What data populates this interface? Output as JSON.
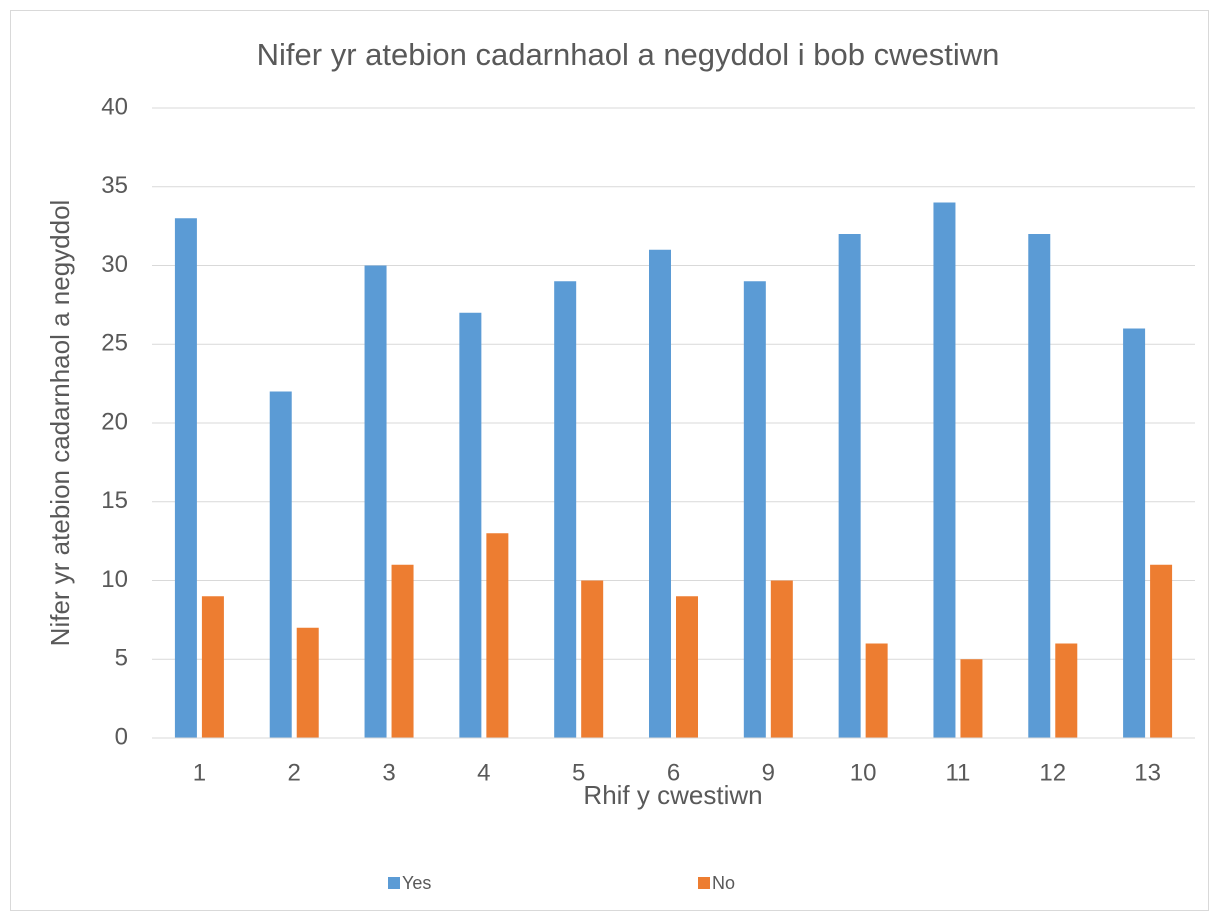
{
  "chart_data": {
    "type": "bar",
    "title": "Nifer yr atebion cadarnhaol a negyddol i bob cwestiwn",
    "x_label": "Rhif y cwestiwn",
    "y_label": "Nifer yr atebion cadarnhaol a negyddol",
    "categories": [
      "1",
      "2",
      "3",
      "4",
      "5",
      "6",
      "9",
      "10",
      "11",
      "12",
      "13"
    ],
    "series": [
      {
        "name": "Yes",
        "color": "#5b9bd5",
        "values": [
          33,
          22,
          30,
          27,
          29,
          31,
          29,
          32,
          34,
          32,
          26
        ]
      },
      {
        "name": "No",
        "color": "#ed7d31",
        "values": [
          9,
          7,
          11,
          13,
          10,
          9,
          10,
          6,
          5,
          6,
          11
        ]
      }
    ],
    "ylim": [
      0,
      40
    ],
    "yticks": [
      0,
      5,
      10,
      15,
      20,
      25,
      30,
      35,
      40
    ],
    "grid": true,
    "legend": "bottom"
  }
}
